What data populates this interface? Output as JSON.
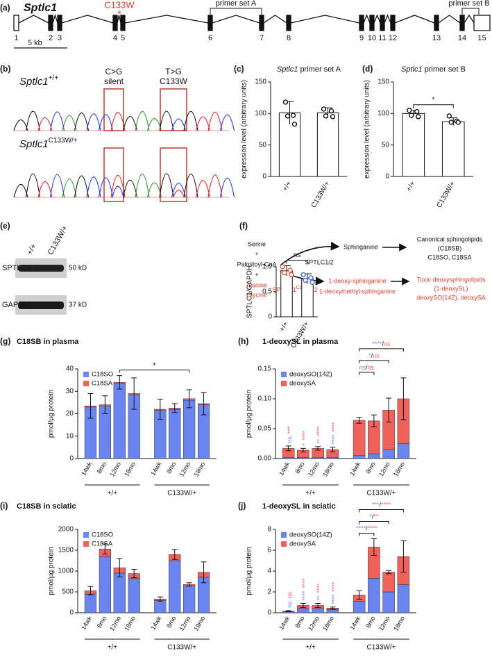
{
  "gene_diagram": {
    "panel": "(a)",
    "gene": "Sptlc1",
    "mutation": "C133W",
    "mutation_mark": "*",
    "exons": [
      "1",
      "2",
      "3",
      "4",
      "5",
      "6",
      "7",
      "8",
      "9",
      "10",
      "11",
      "12",
      "13",
      "14",
      "15"
    ],
    "primer_a": "primer set A",
    "primer_b": "primer set B",
    "scale": "5 kb"
  },
  "chromatogram": {
    "panel": "(b)",
    "gene": "Sptlc1",
    "wt": "+/+",
    "mutant": "C133W/+",
    "sites": [
      {
        "change": "C>G",
        "effect": "silent"
      },
      {
        "change": "T>G",
        "effect": "C133W"
      }
    ]
  },
  "western_blot": {
    "panel": "(e)",
    "lanes": [
      "+/+",
      "C133W/+"
    ],
    "bands": [
      {
        "protein": "SPTLC1",
        "size": "50 kD"
      },
      {
        "protein": "GAPDH",
        "size": "37 kD"
      }
    ]
  },
  "pathway": {
    "panel": "(f)",
    "substrates": [
      "Serine",
      "+",
      "Palmitoyl-CoA",
      "+"
    ],
    "alt_substrates": [
      "Alanine",
      "Glycine"
    ],
    "enzyme": "SPTLC1/2",
    "product": "Sphinganine",
    "canonical": [
      "Canonical sphingolipids",
      "(C18SB)",
      "C18SO, C18SA"
    ],
    "mutant_enzyme": {
      "name": "SPTLC1",
      "superscript": "C133W",
      "suffix": "/2"
    },
    "deoxy_products": [
      "1-deoxy-sphinganine",
      "1-deoxymethyl-sphinganine"
    ],
    "toxic": [
      "Toxic deoxysphingolipids",
      "(1-deoxySL)",
      "deoxySO(14Z), deoxySA"
    ]
  },
  "chart_data": [
    {
      "panel": "(c)",
      "type": "bar",
      "title": [
        "Sptlc1",
        "primer set A"
      ],
      "y_label": "expression level (arbitrary units)",
      "categories": [
        "+/+",
        "C133W/+"
      ],
      "values": [
        101,
        101
      ],
      "errors": [
        18,
        8
      ],
      "points": [
        [
          118,
          97,
          96,
          83
        ],
        [
          107,
          104,
          96,
          95
        ]
      ],
      "color": "#ffffff",
      "point_colors": [
        "#000000",
        "#000000"
      ],
      "ylim": [
        0,
        150
      ],
      "yticks": [
        0,
        50,
        100,
        150
      ]
    },
    {
      "panel": "(d)",
      "type": "bar",
      "title": [
        "Sptlc1",
        "primer set B"
      ],
      "y_label": "expression level (arbitrary units)",
      "categories": [
        "+/+",
        "C133W/+"
      ],
      "values": [
        100,
        87
      ],
      "errors": [
        5,
        6
      ],
      "points": [
        [
          105,
          103,
          97,
          95
        ],
        [
          96,
          88,
          86,
          86
        ]
      ],
      "color": "#ffffff",
      "point_colors": [
        "#000000",
        "#000000"
      ],
      "significance": "*",
      "ylim": [
        0,
        150
      ],
      "yticks": [
        0,
        50,
        100,
        150
      ]
    },
    {
      "type": "bar",
      "y_label": "SPTLC1/GAPDH",
      "categories": [
        "+/+",
        "C133W/+"
      ],
      "values": [
        0.92,
        0.76
      ],
      "errors": [
        0.1,
        0.1
      ],
      "points": [
        [
          1.0,
          0.93,
          0.88,
          0.84
        ],
        [
          0.84,
          0.78,
          0.73,
          0.69
        ]
      ],
      "color": "#ffffff",
      "point_colors": [
        "#e0503a",
        "#3a62d8"
      ],
      "significance": "ns",
      "ylim": [
        0,
        1
      ],
      "yticks": [
        0,
        0.5,
        {
          "value": 1,
          "label": "1.0"
        }
      ]
    },
    {
      "panel": "(g)",
      "type": "stacked_bar",
      "title": "C18SB in plasma",
      "y_label": "pmol/µg protein",
      "categories": [
        "14wk",
        "8mo",
        "12mo",
        "18mo",
        "14wk",
        "8mo",
        "12mo",
        "18mo"
      ],
      "groups": [
        "+/+",
        "C133W/+"
      ],
      "series": [
        {
          "name": "C18SO",
          "color": "#6a85f0",
          "values": [
            23,
            23.5,
            33.5,
            28.5,
            21.5,
            22,
            26,
            24
          ]
        },
        {
          "name": "C18SA",
          "color": "#f0625c",
          "values": [
            0.5,
            0.5,
            0.5,
            0.5,
            0.5,
            0.5,
            0.7,
            0.5
          ]
        }
      ],
      "errors": [
        5.5,
        4,
        3,
        7,
        4.5,
        2,
        4,
        5
      ],
      "comparison": "*",
      "ylim": [
        0,
        40
      ],
      "yticks": [
        0,
        10,
        20,
        30,
        40
      ]
    },
    {
      "panel": "(h)",
      "type": "stacked_bar",
      "title": "1-deoxySL in plasma",
      "y_label": "pmol/µg protein",
      "categories": [
        "14wk",
        "8mo",
        "12mo",
        "18mo",
        "14wk",
        "8mo",
        "12mo",
        "18mo"
      ],
      "groups": [
        "+/+",
        "C133W/+"
      ],
      "series": [
        {
          "name": "deoxySO(14Z)",
          "color": "#6a85f0",
          "values": [
            0.002,
            0.002,
            0.002,
            0.002,
            0.005,
            0.008,
            0.015,
            0.025
          ]
        },
        {
          "name": "deoxySA",
          "color": "#f0625c",
          "values": [
            0.015,
            0.012,
            0.015,
            0.013,
            0.059,
            0.055,
            0.066,
            0.075
          ]
        }
      ],
      "errors": [
        0.004,
        0.003,
        0.003,
        0.004,
        0.005,
        0.01,
        0.02,
        0.035
      ],
      "bar_annotations": [
        {
          "lower": "ns",
          "upper": "***"
        },
        {
          "lower": "*",
          "upper": "****"
        },
        {
          "lower": "**",
          "upper": "****"
        },
        {
          "lower": "****",
          "upper": "****"
        }
      ],
      "comparisons": [
        [
          "ns",
          "/",
          "ns"
        ],
        [
          "*",
          "/",
          "ns"
        ],
        [
          "****",
          "/",
          "ns"
        ]
      ],
      "ylim": [
        0,
        0.15
      ],
      "yticks": [
        {
          "value": 0,
          "label": "0.00"
        },
        0.05,
        {
          "value": 0.1,
          "label": "0.10"
        },
        0.15
      ]
    },
    {
      "panel": "(i)",
      "type": "stacked_bar",
      "title": "C18SB in sciatic",
      "y_label": "pmol/µg protein",
      "categories": [
        "14wk",
        "8mo",
        "12mo",
        "18mo",
        "14wk",
        "8mo",
        "12mo",
        "18mo"
      ],
      "groups": [
        "+/+",
        "C133W/+"
      ],
      "series": [
        {
          "name": "C18SO",
          "color": "#6a85f0",
          "values": [
            450,
            1350,
            950,
            820,
            290,
            1250,
            640,
            850
          ]
        },
        {
          "name": "C18SA",
          "color": "#f0625c",
          "values": [
            80,
            180,
            130,
            120,
            40,
            150,
            40,
            120
          ]
        }
      ],
      "errors": [
        100,
        120,
        220,
        100,
        50,
        120,
        40,
        250
      ],
      "ylim": [
        0,
        2000
      ],
      "yticks": [
        0,
        500,
        1000,
        1500,
        2000
      ]
    },
    {
      "panel": "(j)",
      "type": "stacked_bar",
      "title": "1-deoxySL in sciatic",
      "y_label": "pmol/µg protein",
      "categories": [
        "14wk",
        "8mo",
        "12mo",
        "18mo",
        "14wk",
        "8mo",
        "12mo",
        "18mo"
      ],
      "groups": [
        "+/+",
        "C133W/+"
      ],
      "series": [
        {
          "name": "deoxySO(14Z)",
          "color": "#6a85f0",
          "values": [
            0.1,
            0.4,
            0.4,
            0.3,
            1.1,
            3.3,
            2.0,
            2.7
          ]
        },
        {
          "name": "deoxySA",
          "color": "#f0625c",
          "values": [
            0.05,
            0.3,
            0.3,
            0.15,
            0.6,
            3.0,
            1.9,
            2.7
          ]
        }
      ],
      "errors": [
        0.05,
        0.2,
        0.2,
        0.1,
        0.4,
        0.8,
        0.15,
        1.5
      ],
      "bar_annotations": [
        {
          "lower": "ns",
          "upper": "ns"
        },
        {
          "lower": "****",
          "upper": "****"
        },
        {
          "lower": "**",
          "upper": "****"
        },
        {
          "lower": "****",
          "upper": "****"
        }
      ],
      "comparisons": [
        [
          "****",
          "/",
          "****"
        ],
        [
          "*",
          "/",
          "**"
        ],
        [
          "***",
          "/",
          "****"
        ]
      ],
      "ylim": [
        0,
        8
      ],
      "yticks": [
        0,
        2,
        4,
        6,
        8
      ]
    }
  ]
}
